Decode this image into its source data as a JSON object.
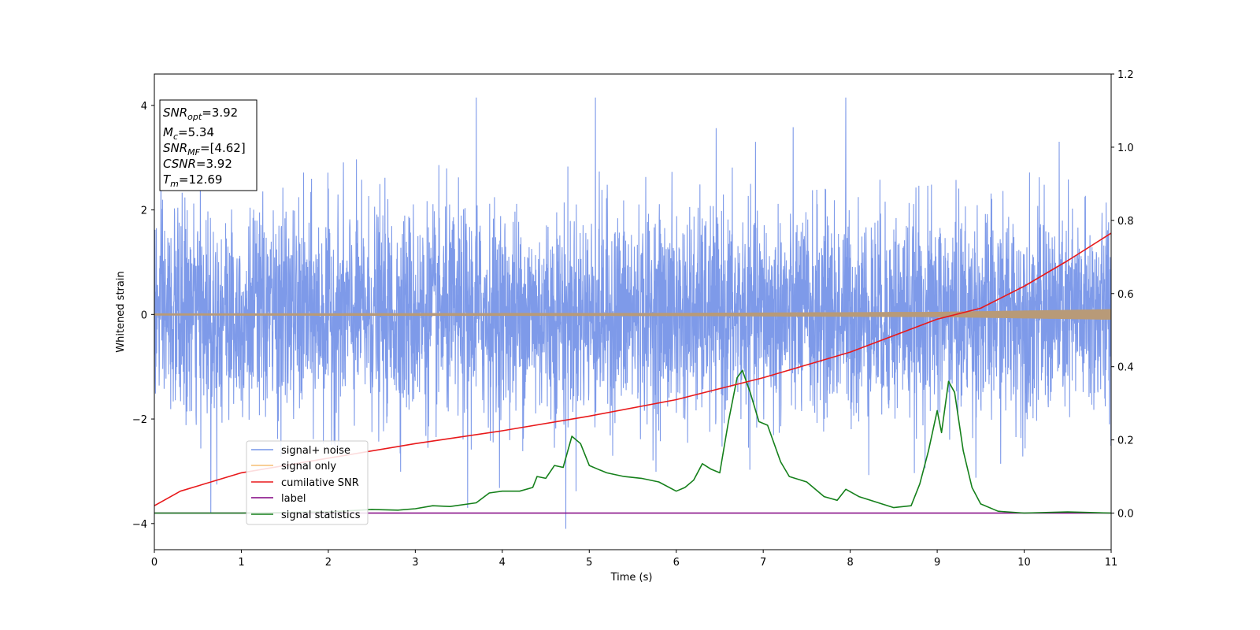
{
  "chart_data": {
    "type": "line",
    "xlabel": "Time (s)",
    "ylabel": "Whitened strain",
    "xlim": [
      0,
      11
    ],
    "ylim": [
      -4.5,
      4.6
    ],
    "y2lim": [
      -0.1,
      1.2
    ],
    "xticks": [
      "0",
      "1",
      "2",
      "3",
      "4",
      "5",
      "6",
      "7",
      "8",
      "9",
      "10",
      "11"
    ],
    "yticks": [
      "−4",
      "−2",
      "0",
      "2",
      "4"
    ],
    "y2ticks": [
      "0.0",
      "0.2",
      "0.4",
      "0.6",
      "0.8",
      "1.0",
      "1.2"
    ],
    "grid": false,
    "legend_position": "lower-left",
    "annotations": {
      "snr_opt": {
        "sym": "SNR",
        "sub": "opt",
        "val": "=3.92"
      },
      "mc": {
        "sym": "M",
        "sub": "c",
        "val": "=5.34"
      },
      "snr_mf": {
        "sym": "SNR",
        "sub": "MF",
        "val": "=[4.62]"
      },
      "csnr": {
        "sym": "CSNR",
        "sub": "",
        "val": "=3.92"
      },
      "tm": {
        "sym": "T",
        "sub": "m",
        "val": "=12.69"
      }
    },
    "series": [
      {
        "name": "signal+ noise",
        "axis": "left",
        "color": "#7795e8",
        "noise_band_typical": [
          -1.6,
          1.6
        ],
        "notable_peaks": [
          {
            "x": 3.7,
            "y": 4.15
          },
          {
            "x": 5.07,
            "y": 4.15
          },
          {
            "x": 7.95,
            "y": 4.15
          },
          {
            "x": 4.73,
            "y": -4.1
          },
          {
            "x": 0.65,
            "y": -3.8
          },
          {
            "x": 3.6,
            "y": -3.7
          }
        ]
      },
      {
        "name": "signal only",
        "axis": "left",
        "color": "#f5bf74",
        "amplitude": [
          [
            0,
            0.02
          ],
          [
            6,
            0.03
          ],
          [
            9,
            0.05
          ],
          [
            11,
            0.1
          ]
        ]
      },
      {
        "name": "cumilative SNR",
        "axis": "right",
        "color": "#e8191b",
        "points": [
          [
            0,
            0.02
          ],
          [
            0.3,
            0.06
          ],
          [
            1,
            0.11
          ],
          [
            2,
            0.15
          ],
          [
            3,
            0.19
          ],
          [
            4,
            0.225
          ],
          [
            5,
            0.265
          ],
          [
            6,
            0.31
          ],
          [
            7,
            0.37
          ],
          [
            8,
            0.44
          ],
          [
            9,
            0.53
          ],
          [
            9.5,
            0.56
          ],
          [
            10,
            0.62
          ],
          [
            10.5,
            0.69
          ],
          [
            11,
            0.765
          ]
        ]
      },
      {
        "name": "label",
        "axis": "right",
        "color": "#800080",
        "points": [
          [
            0,
            0.0
          ],
          [
            11,
            0.0
          ]
        ]
      },
      {
        "name": "signal statistics",
        "axis": "right",
        "color": "#15801b",
        "points": [
          [
            0,
            0.0
          ],
          [
            1,
            0.0
          ],
          [
            2,
            0.003
          ],
          [
            2.5,
            0.01
          ],
          [
            2.8,
            0.008
          ],
          [
            3.0,
            0.012
          ],
          [
            3.2,
            0.02
          ],
          [
            3.4,
            0.018
          ],
          [
            3.7,
            0.028
          ],
          [
            3.85,
            0.055
          ],
          [
            4.0,
            0.06
          ],
          [
            4.2,
            0.06
          ],
          [
            4.35,
            0.07
          ],
          [
            4.4,
            0.1
          ],
          [
            4.5,
            0.095
          ],
          [
            4.6,
            0.13
          ],
          [
            4.7,
            0.125
          ],
          [
            4.8,
            0.21
          ],
          [
            4.9,
            0.19
          ],
          [
            5.0,
            0.13
          ],
          [
            5.1,
            0.12
          ],
          [
            5.2,
            0.11
          ],
          [
            5.4,
            0.1
          ],
          [
            5.6,
            0.095
          ],
          [
            5.8,
            0.085
          ],
          [
            6.0,
            0.06
          ],
          [
            6.1,
            0.07
          ],
          [
            6.2,
            0.09
          ],
          [
            6.3,
            0.135
          ],
          [
            6.4,
            0.12
          ],
          [
            6.5,
            0.11
          ],
          [
            6.6,
            0.25
          ],
          [
            6.7,
            0.37
          ],
          [
            6.76,
            0.39
          ],
          [
            6.85,
            0.33
          ],
          [
            6.95,
            0.25
          ],
          [
            7.05,
            0.24
          ],
          [
            7.2,
            0.14
          ],
          [
            7.3,
            0.1
          ],
          [
            7.5,
            0.085
          ],
          [
            7.7,
            0.045
          ],
          [
            7.85,
            0.035
          ],
          [
            7.95,
            0.065
          ],
          [
            8.1,
            0.045
          ],
          [
            8.3,
            0.03
          ],
          [
            8.5,
            0.015
          ],
          [
            8.7,
            0.02
          ],
          [
            8.8,
            0.08
          ],
          [
            8.9,
            0.17
          ],
          [
            9.0,
            0.28
          ],
          [
            9.05,
            0.22
          ],
          [
            9.13,
            0.36
          ],
          [
            9.2,
            0.33
          ],
          [
            9.3,
            0.17
          ],
          [
            9.4,
            0.07
          ],
          [
            9.5,
            0.025
          ],
          [
            9.7,
            0.005
          ],
          [
            10.0,
            0.0
          ],
          [
            10.5,
            0.003
          ],
          [
            11,
            0.0
          ]
        ]
      }
    ]
  }
}
